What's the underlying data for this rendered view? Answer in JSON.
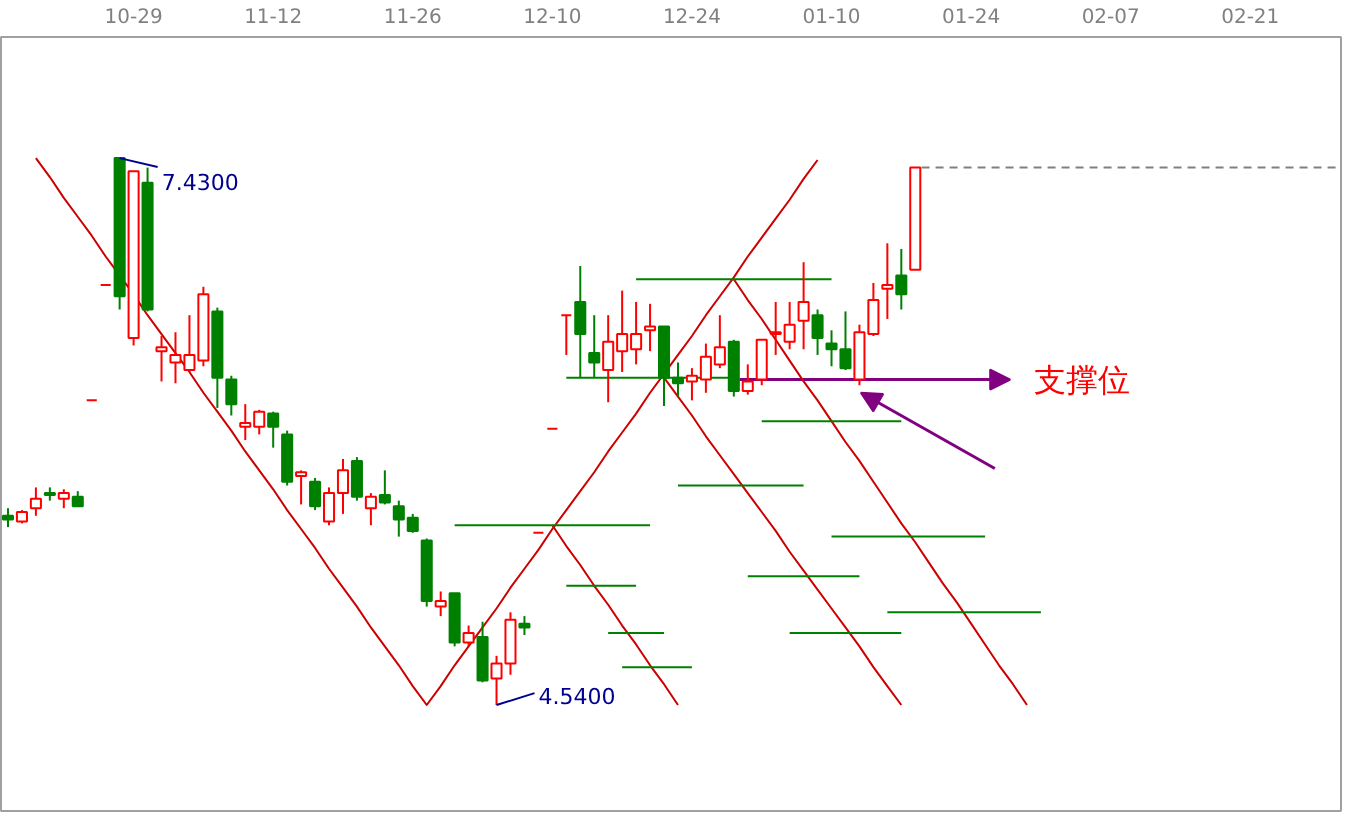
{
  "chart_data": {
    "type": "candlestick",
    "categories": [
      null,
      null,
      null,
      null,
      null,
      null,
      null,
      null,
      null,
      "10-29",
      null,
      null,
      null,
      null,
      null,
      null,
      null,
      null,
      null,
      "11-12",
      null,
      null,
      null,
      null,
      null,
      null,
      null,
      null,
      null,
      "11-26",
      null,
      null,
      null,
      null,
      null,
      null,
      null,
      null,
      null,
      "12-10",
      null,
      null,
      null,
      null,
      null,
      null,
      null,
      null,
      null,
      "12-24",
      null,
      null,
      null,
      null,
      null,
      null,
      null,
      null,
      null,
      "01-10",
      null,
      null,
      null,
      null,
      null,
      null,
      null,
      null,
      null,
      "01-24",
      null,
      null,
      null,
      null,
      null,
      null,
      null,
      null,
      null,
      "02-07",
      null,
      null,
      null,
      null,
      null,
      null,
      null,
      null,
      null,
      "02-21",
      null,
      null,
      null,
      null,
      null,
      null
    ],
    "ohlc": [
      [
        5.54,
        5.58,
        5.48,
        5.52
      ],
      [
        5.51,
        5.57,
        5.5,
        5.56
      ],
      [
        5.58,
        5.69,
        5.54,
        5.63
      ],
      [
        5.66,
        5.69,
        5.62,
        5.65
      ],
      [
        5.63,
        5.68,
        5.58,
        5.66
      ],
      [
        5.64,
        5.67,
        5.59,
        5.59
      ],
      [
        6.15,
        6.15,
        6.15,
        6.15
      ],
      [
        6.76,
        6.76,
        6.76,
        6.76
      ],
      [
        7.43,
        7.43,
        6.63,
        6.7
      ],
      [
        6.48,
        7.36,
        6.44,
        7.36
      ],
      [
        7.3,
        7.38,
        6.62,
        6.63
      ],
      [
        6.41,
        6.49,
        6.25,
        6.43
      ],
      [
        6.35,
        6.51,
        6.24,
        6.39
      ],
      [
        6.31,
        6.6,
        6.3,
        6.39
      ],
      [
        6.36,
        6.75,
        6.33,
        6.71
      ],
      [
        6.62,
        6.64,
        6.11,
        6.27
      ],
      [
        6.26,
        6.28,
        6.07,
        6.13
      ],
      [
        6.01,
        6.13,
        5.94,
        6.03
      ],
      [
        6.01,
        6.1,
        5.97,
        6.09
      ],
      [
        6.08,
        6.09,
        5.9,
        6.01
      ],
      [
        5.97,
        5.99,
        5.7,
        5.72
      ],
      [
        5.75,
        5.78,
        5.6,
        5.77
      ],
      [
        5.72,
        5.74,
        5.57,
        5.59
      ],
      [
        5.51,
        5.69,
        5.49,
        5.66
      ],
      [
        5.66,
        5.84,
        5.55,
        5.78
      ],
      [
        5.83,
        5.85,
        5.62,
        5.64
      ],
      [
        5.58,
        5.66,
        5.49,
        5.64
      ],
      [
        5.65,
        5.78,
        5.6,
        5.61
      ],
      [
        5.59,
        5.62,
        5.43,
        5.52
      ],
      [
        5.53,
        5.55,
        5.45,
        5.46
      ],
      [
        5.41,
        5.42,
        5.06,
        5.09
      ],
      [
        5.06,
        5.14,
        5.01,
        5.09
      ],
      [
        5.13,
        5.13,
        4.85,
        4.87
      ],
      [
        4.87,
        4.96,
        4.85,
        4.92
      ],
      [
        4.9,
        4.98,
        4.66,
        4.67
      ],
      [
        4.68,
        4.8,
        4.54,
        4.76
      ],
      [
        4.76,
        5.03,
        4.7,
        4.99
      ],
      [
        4.97,
        5.01,
        4.91,
        4.95
      ],
      [
        5.45,
        5.45,
        5.45,
        5.45
      ],
      [
        6.0,
        6.0,
        6.0,
        6.0
      ],
      [
        6.6,
        6.6,
        6.39,
        6.6
      ],
      [
        6.67,
        6.86,
        6.27,
        6.5
      ],
      [
        6.4,
        6.6,
        6.27,
        6.35
      ],
      [
        6.31,
        6.6,
        6.14,
        6.46
      ],
      [
        6.41,
        6.73,
        6.3,
        6.5
      ],
      [
        6.42,
        6.67,
        6.34,
        6.5
      ],
      [
        6.52,
        6.66,
        6.41,
        6.54
      ],
      [
        6.54,
        6.54,
        6.12,
        6.27
      ],
      [
        6.27,
        6.35,
        6.17,
        6.24
      ],
      [
        6.25,
        6.32,
        6.15,
        6.28
      ],
      [
        6.26,
        6.45,
        6.19,
        6.38
      ],
      [
        6.34,
        6.6,
        6.32,
        6.43
      ],
      [
        6.46,
        6.47,
        6.17,
        6.2
      ],
      [
        6.2,
        6.34,
        6.18,
        6.25
      ],
      [
        6.26,
        6.47,
        6.23,
        6.47
      ],
      [
        6.5,
        6.67,
        6.39,
        6.51
      ],
      [
        6.46,
        6.67,
        6.42,
        6.55
      ],
      [
        6.57,
        6.88,
        6.42,
        6.67
      ],
      [
        6.6,
        6.63,
        6.39,
        6.48
      ],
      [
        6.45,
        6.52,
        6.33,
        6.42
      ],
      [
        6.42,
        6.62,
        6.31,
        6.32
      ],
      [
        6.26,
        6.55,
        6.23,
        6.51
      ],
      [
        6.5,
        6.77,
        6.49,
        6.68
      ],
      [
        6.74,
        6.98,
        6.58,
        6.76
      ],
      [
        6.81,
        6.95,
        6.63,
        6.71
      ],
      [
        6.84,
        7.38,
        6.84,
        7.38
      ],
      null,
      null,
      null,
      null,
      null,
      null,
      null,
      null,
      null,
      null,
      null,
      null,
      null,
      null,
      null,
      null,
      null,
      null,
      null,
      null,
      null,
      null,
      null,
      null,
      null,
      null,
      null,
      null,
      null,
      null
    ],
    "value_labels": [
      null,
      null,
      null,
      null,
      null,
      null,
      null,
      null,
      "7.4300",
      null,
      null,
      null,
      null,
      null,
      null,
      null,
      null,
      null,
      null,
      null,
      null,
      null,
      null,
      null,
      null,
      null,
      null,
      null,
      null,
      null,
      null,
      null,
      null,
      null,
      null,
      "4.5400",
      null,
      null,
      null,
      null,
      null,
      null,
      null,
      null,
      null,
      null,
      null,
      null,
      null,
      null,
      null,
      null,
      null,
      null,
      null,
      null,
      null,
      null,
      null,
      null,
      null,
      null,
      null,
      null,
      null,
      null,
      null,
      null,
      null,
      null,
      null,
      null,
      null,
      null,
      null,
      null,
      null,
      null,
      null,
      null,
      null,
      null,
      null,
      null,
      null,
      null,
      null,
      null,
      null,
      null,
      null,
      null,
      null,
      null,
      null,
      null
    ],
    "colors": [
      "#008000",
      "#ff0000",
      "#ff0000",
      "#008000",
      "#ff0000",
      "#008000",
      "#ff0000",
      "#ff0000",
      "#008000",
      "#ff0000",
      "#008000",
      "#ff0000",
      "#ff0000",
      "#ff0000",
      "#ff0000",
      "#008000",
      "#008000",
      "#ff0000",
      "#ff0000",
      "#008000",
      "#008000",
      "#ff0000",
      "#008000",
      "#ff0000",
      "#ff0000",
      "#008000",
      "#ff0000",
      "#008000",
      "#008000",
      "#008000",
      "#008000",
      "#ff0000",
      "#008000",
      "#ff0000",
      "#008000",
      "#ff0000",
      "#ff0000",
      "#008000",
      "#ff0000",
      "#ff0000",
      "#ff0000",
      "#008000",
      "#008000",
      "#ff0000",
      "#ff0000",
      "#ff0000",
      "#ff0000",
      "#008000",
      "#008000",
      "#ff0000",
      "#ff0000",
      "#ff0000",
      "#008000",
      "#ff0000",
      "#ff0000",
      "#ff0000",
      "#ff0000",
      "#ff0000",
      "#008000",
      "#008000",
      "#008000",
      "#ff0000",
      "#ff0000",
      "#ff0000",
      "#008000",
      "#ff0000",
      null,
      null,
      null,
      null,
      null,
      null,
      null,
      null,
      null,
      null,
      null,
      null,
      null,
      null,
      null,
      null,
      null,
      null,
      null,
      null,
      null,
      null,
      null,
      null,
      null,
      null,
      null,
      null,
      null,
      null
    ],
    "series": [
      {
        "type": "line",
        "color": "#cc0000",
        "values": [
          null,
          null,
          7.43,
          7.33,
          7.22,
          7.12,
          7.02,
          6.91,
          6.81,
          6.71,
          6.6,
          6.5,
          6.4,
          6.3,
          6.19,
          6.09,
          5.99,
          5.88,
          5.78,
          5.68,
          5.57,
          5.47,
          5.37,
          5.26,
          5.16,
          5.06,
          4.95,
          4.85,
          4.75,
          4.64,
          4.54,
          4.64,
          4.75,
          4.85,
          4.95,
          5.05,
          5.16,
          5.26,
          5.36,
          5.47,
          5.57,
          5.67,
          5.77,
          5.88,
          5.98,
          6.08,
          6.19,
          6.29,
          6.39,
          6.49,
          6.6,
          6.7,
          6.8,
          6.91,
          7.01,
          7.11,
          7.21,
          7.32,
          7.42,
          null,
          null,
          null,
          null,
          null,
          null,
          null,
          null,
          null,
          null,
          null,
          null,
          null,
          null,
          null,
          null,
          null,
          null,
          null,
          null,
          null,
          null,
          null,
          null,
          null,
          null,
          null,
          null,
          null,
          null,
          null,
          null,
          null,
          null,
          null,
          null,
          null
        ]
      },
      {
        "type": "line",
        "color": "#cc0000",
        "values": [
          null,
          null,
          null,
          null,
          null,
          null,
          null,
          null,
          null,
          null,
          null,
          null,
          null,
          null,
          null,
          null,
          null,
          null,
          null,
          null,
          null,
          null,
          null,
          null,
          null,
          null,
          null,
          null,
          null,
          null,
          null,
          null,
          null,
          null,
          null,
          null,
          null,
          null,
          null,
          5.49,
          5.38,
          5.28,
          5.17,
          5.07,
          4.96,
          4.86,
          4.75,
          4.65,
          4.54,
          null,
          null,
          null,
          null,
          null,
          null,
          null,
          null,
          null,
          null,
          null,
          null,
          null,
          null,
          null,
          null,
          null,
          null,
          null,
          null,
          null,
          null,
          null,
          null,
          null,
          null,
          null,
          null,
          null,
          null,
          null,
          null,
          null,
          null,
          null,
          null,
          null,
          null,
          null,
          null,
          null,
          null,
          null,
          null,
          null,
          null,
          null
        ]
      },
      {
        "type": "line",
        "color": "#cc0000",
        "values": [
          null,
          null,
          null,
          null,
          null,
          null,
          null,
          null,
          null,
          null,
          null,
          null,
          null,
          null,
          null,
          null,
          null,
          null,
          null,
          null,
          null,
          null,
          null,
          null,
          null,
          null,
          null,
          null,
          null,
          null,
          null,
          null,
          null,
          null,
          null,
          null,
          null,
          null,
          null,
          null,
          null,
          null,
          null,
          null,
          null,
          null,
          null,
          6.27,
          6.17,
          6.07,
          5.96,
          5.86,
          5.76,
          5.66,
          5.56,
          5.46,
          5.35,
          5.25,
          5.15,
          5.05,
          4.95,
          4.85,
          4.74,
          4.64,
          4.54,
          null,
          null,
          null,
          null,
          null,
          null,
          null,
          null,
          null,
          null,
          null,
          null,
          null,
          null,
          null,
          null,
          null,
          null,
          null,
          null,
          null,
          null,
          null,
          null,
          null,
          null,
          null,
          null,
          null,
          null,
          null
        ]
      },
      {
        "type": "line",
        "color": "#cc0000",
        "values": [
          null,
          null,
          null,
          null,
          null,
          null,
          null,
          null,
          null,
          null,
          null,
          null,
          null,
          null,
          null,
          null,
          null,
          null,
          null,
          null,
          null,
          null,
          null,
          null,
          null,
          null,
          null,
          null,
          null,
          null,
          null,
          null,
          null,
          null,
          null,
          null,
          null,
          null,
          null,
          null,
          null,
          null,
          null,
          null,
          null,
          null,
          null,
          null,
          null,
          null,
          null,
          null,
          6.79,
          6.68,
          6.58,
          6.47,
          6.36,
          6.25,
          6.15,
          6.04,
          5.93,
          5.83,
          5.72,
          5.61,
          5.5,
          5.4,
          5.29,
          5.18,
          5.08,
          4.97,
          4.86,
          4.75,
          4.65,
          4.54,
          null,
          null,
          null,
          null,
          null,
          null,
          null,
          null,
          null,
          null,
          null,
          null,
          null,
          null,
          null,
          null,
          null,
          null,
          null,
          null,
          null,
          null
        ]
      },
      {
        "type": "line",
        "color": "#008000",
        "values": [
          null,
          null,
          null,
          null,
          null,
          null,
          null,
          null,
          null,
          null,
          null,
          null,
          null,
          null,
          null,
          null,
          null,
          null,
          null,
          null,
          null,
          null,
          null,
          null,
          null,
          null,
          null,
          null,
          null,
          null,
          null,
          null,
          5.49,
          5.49,
          5.49,
          5.49,
          5.49,
          5.49,
          5.49,
          5.49,
          5.49,
          5.49,
          5.49,
          5.49,
          5.49,
          5.49,
          5.49,
          null,
          null,
          null,
          null,
          null,
          null,
          null,
          null,
          null,
          null,
          null,
          null,
          null,
          null,
          null,
          null,
          null,
          null,
          null,
          null,
          null,
          null,
          null,
          null,
          null,
          null,
          null,
          null,
          null,
          null,
          null,
          null,
          null,
          null,
          null,
          null,
          null,
          null,
          null,
          null,
          null,
          null,
          null,
          null,
          null,
          null,
          null,
          null,
          null
        ]
      },
      {
        "type": "line",
        "color": "#008000",
        "values": [
          null,
          null,
          null,
          null,
          null,
          null,
          null,
          null,
          null,
          null,
          null,
          null,
          null,
          null,
          null,
          null,
          null,
          null,
          null,
          null,
          null,
          null,
          null,
          null,
          null,
          null,
          null,
          null,
          null,
          null,
          null,
          null,
          null,
          null,
          null,
          null,
          null,
          null,
          null,
          null,
          5.17,
          5.17,
          5.17,
          5.17,
          5.17,
          5.17,
          null,
          null,
          null,
          null,
          null,
          null,
          null,
          null,
          null,
          null,
          null,
          null,
          null,
          null,
          null,
          null,
          null,
          null,
          null,
          null,
          null,
          null,
          null,
          null,
          null,
          null,
          null,
          null,
          null,
          null,
          null,
          null,
          null,
          null,
          null,
          null,
          null,
          null,
          null,
          null,
          null,
          null,
          null,
          null,
          null,
          null,
          null,
          null,
          null,
          null
        ]
      },
      {
        "type": "line",
        "color": "#008000",
        "values": [
          null,
          null,
          null,
          null,
          null,
          null,
          null,
          null,
          null,
          null,
          null,
          null,
          null,
          null,
          null,
          null,
          null,
          null,
          null,
          null,
          null,
          null,
          null,
          null,
          null,
          null,
          null,
          null,
          null,
          null,
          null,
          null,
          null,
          null,
          null,
          null,
          null,
          null,
          null,
          null,
          null,
          null,
          null,
          4.92,
          4.92,
          4.92,
          4.92,
          4.92,
          null,
          null,
          null,
          null,
          null,
          null,
          null,
          null,
          null,
          null,
          null,
          null,
          null,
          null,
          null,
          null,
          null,
          null,
          null,
          null,
          null,
          null,
          null,
          null,
          null,
          null,
          null,
          null,
          null,
          null,
          null,
          null,
          null,
          null,
          null,
          null,
          null,
          null,
          null,
          null,
          null,
          null,
          null,
          null,
          null,
          null,
          null,
          null
        ]
      },
      {
        "type": "line",
        "color": "#008000",
        "values": [
          null,
          null,
          null,
          null,
          null,
          null,
          null,
          null,
          null,
          null,
          null,
          null,
          null,
          null,
          null,
          null,
          null,
          null,
          null,
          null,
          null,
          null,
          null,
          null,
          null,
          null,
          null,
          null,
          null,
          null,
          null,
          null,
          null,
          null,
          null,
          null,
          null,
          null,
          null,
          null,
          null,
          null,
          null,
          null,
          4.74,
          4.74,
          4.74,
          4.74,
          4.74,
          4.74,
          null,
          null,
          null,
          null,
          null,
          null,
          null,
          null,
          null,
          null,
          null,
          null,
          null,
          null,
          null,
          null,
          null,
          null,
          null,
          null,
          null,
          null,
          null,
          null,
          null,
          null,
          null,
          null,
          null,
          null,
          null,
          null,
          null,
          null,
          null,
          null,
          null,
          null,
          null,
          null,
          null,
          null,
          null,
          null,
          null,
          null
        ]
      },
      {
        "type": "line",
        "color": "#008000",
        "values": [
          null,
          null,
          null,
          null,
          null,
          null,
          null,
          null,
          null,
          null,
          null,
          null,
          null,
          null,
          null,
          null,
          null,
          null,
          null,
          null,
          null,
          null,
          null,
          null,
          null,
          null,
          null,
          null,
          null,
          null,
          null,
          null,
          null,
          null,
          null,
          null,
          null,
          null,
          null,
          null,
          6.27,
          6.27,
          6.27,
          6.27,
          6.27,
          6.27,
          6.27,
          6.27,
          6.27,
          6.27,
          6.27,
          6.27,
          6.27,
          null,
          null,
          null,
          null,
          null,
          null,
          null,
          null,
          null,
          null,
          null,
          null,
          null,
          null,
          null,
          null,
          null,
          null,
          null,
          null,
          null,
          null,
          null,
          null,
          null,
          null,
          null,
          null,
          null,
          null,
          null,
          null,
          null,
          null,
          null,
          null,
          null,
          null,
          null,
          null,
          null,
          null,
          null
        ]
      },
      {
        "type": "line",
        "color": "#008000",
        "values": [
          null,
          null,
          null,
          null,
          null,
          null,
          null,
          null,
          null,
          null,
          null,
          null,
          null,
          null,
          null,
          null,
          null,
          null,
          null,
          null,
          null,
          null,
          null,
          null,
          null,
          null,
          null,
          null,
          null,
          null,
          null,
          null,
          null,
          null,
          null,
          null,
          null,
          null,
          null,
          null,
          null,
          null,
          null,
          null,
          null,
          6.79,
          6.79,
          6.79,
          6.79,
          6.79,
          6.79,
          6.79,
          6.79,
          6.79,
          6.79,
          6.79,
          6.79,
          6.79,
          6.79,
          6.79,
          null,
          null,
          null,
          null,
          null,
          null,
          null,
          null,
          null,
          null,
          null,
          null,
          null,
          null,
          null,
          null,
          null,
          null,
          null,
          null,
          null,
          null,
          null,
          null,
          null,
          null,
          null,
          null,
          null,
          null,
          null,
          null,
          null,
          null,
          null,
          null
        ]
      },
      {
        "type": "line",
        "color": "#008000",
        "values": [
          null,
          null,
          null,
          null,
          null,
          null,
          null,
          null,
          null,
          null,
          null,
          null,
          null,
          null,
          null,
          null,
          null,
          null,
          null,
          null,
          null,
          null,
          null,
          null,
          null,
          null,
          null,
          null,
          null,
          null,
          null,
          null,
          null,
          null,
          null,
          null,
          null,
          null,
          null,
          null,
          null,
          null,
          null,
          null,
          null,
          null,
          null,
          null,
          null,
          null,
          null,
          null,
          null,
          null,
          6.04,
          6.04,
          6.04,
          6.04,
          6.04,
          6.04,
          6.04,
          6.04,
          6.04,
          6.04,
          6.04,
          null,
          null,
          null,
          null,
          null,
          null,
          null,
          null,
          null,
          null,
          null,
          null,
          null,
          null,
          null,
          null,
          null,
          null,
          null,
          null,
          null,
          null,
          null,
          null,
          null,
          null,
          null,
          null,
          null,
          null,
          null
        ]
      },
      {
        "type": "line",
        "color": "#008000",
        "values": [
          null,
          null,
          null,
          null,
          null,
          null,
          null,
          null,
          null,
          null,
          null,
          null,
          null,
          null,
          null,
          null,
          null,
          null,
          null,
          null,
          null,
          null,
          null,
          null,
          null,
          null,
          null,
          null,
          null,
          null,
          null,
          null,
          null,
          null,
          null,
          null,
          null,
          null,
          null,
          null,
          null,
          null,
          null,
          null,
          null,
          null,
          null,
          null,
          5.7,
          5.7,
          5.7,
          5.7,
          5.7,
          5.7,
          5.7,
          5.7,
          5.7,
          5.7,
          null,
          null,
          null,
          null,
          null,
          null,
          null,
          null,
          null,
          null,
          null,
          null,
          null,
          null,
          null,
          null,
          null,
          null,
          null,
          null,
          null,
          null,
          null,
          null,
          null,
          null,
          null,
          null,
          null,
          null,
          null,
          null,
          null,
          null,
          null,
          null,
          null,
          null
        ]
      },
      {
        "type": "line",
        "color": "#008000",
        "values": [
          null,
          null,
          null,
          null,
          null,
          null,
          null,
          null,
          null,
          null,
          null,
          null,
          null,
          null,
          null,
          null,
          null,
          null,
          null,
          null,
          null,
          null,
          null,
          null,
          null,
          null,
          null,
          null,
          null,
          null,
          null,
          null,
          null,
          null,
          null,
          null,
          null,
          null,
          null,
          null,
          null,
          null,
          null,
          null,
          null,
          null,
          null,
          null,
          null,
          null,
          null,
          null,
          null,
          null,
          null,
          null,
          null,
          null,
          null,
          5.43,
          5.43,
          5.43,
          5.43,
          5.43,
          5.43,
          5.43,
          5.43,
          5.43,
          5.43,
          5.43,
          5.43,
          null,
          null,
          null,
          null,
          null,
          null,
          null,
          null,
          null,
          null,
          null,
          null,
          null,
          null,
          null,
          null,
          null,
          null,
          null,
          null,
          null,
          null,
          null,
          null,
          null
        ]
      },
      {
        "type": "line",
        "color": "#008000",
        "values": [
          null,
          null,
          null,
          null,
          null,
          null,
          null,
          null,
          null,
          null,
          null,
          null,
          null,
          null,
          null,
          null,
          null,
          null,
          null,
          null,
          null,
          null,
          null,
          null,
          null,
          null,
          null,
          null,
          null,
          null,
          null,
          null,
          null,
          null,
          null,
          null,
          null,
          null,
          null,
          null,
          null,
          null,
          null,
          null,
          null,
          null,
          null,
          null,
          null,
          null,
          null,
          null,
          null,
          5.22,
          5.22,
          5.22,
          5.22,
          5.22,
          5.22,
          5.22,
          5.22,
          5.22,
          null,
          null,
          null,
          null,
          null,
          null,
          null,
          null,
          null,
          null,
          null,
          null,
          null,
          null,
          null,
          null,
          null,
          null,
          null,
          null,
          null,
          null,
          null,
          null,
          null,
          null,
          null,
          null,
          null,
          null,
          null,
          null,
          null,
          null
        ]
      },
      {
        "type": "line",
        "color": "#008000",
        "values": [
          null,
          null,
          null,
          null,
          null,
          null,
          null,
          null,
          null,
          null,
          null,
          null,
          null,
          null,
          null,
          null,
          null,
          null,
          null,
          null,
          null,
          null,
          null,
          null,
          null,
          null,
          null,
          null,
          null,
          null,
          null,
          null,
          null,
          null,
          null,
          null,
          null,
          null,
          null,
          null,
          null,
          null,
          null,
          null,
          null,
          null,
          null,
          null,
          null,
          null,
          null,
          null,
          null,
          null,
          null,
          null,
          null,
          null,
          null,
          null,
          null,
          null,
          null,
          5.03,
          5.03,
          5.03,
          5.03,
          5.03,
          5.03,
          5.03,
          5.03,
          5.03,
          5.03,
          5.03,
          5.03,
          null,
          null,
          null,
          null,
          null,
          null,
          null,
          null,
          null,
          null,
          null,
          null,
          null,
          null,
          null,
          null,
          null,
          null,
          null,
          null,
          null
        ]
      },
      {
        "type": "line",
        "color": "#008000",
        "values": [
          null,
          null,
          null,
          null,
          null,
          null,
          null,
          null,
          null,
          null,
          null,
          null,
          null,
          null,
          null,
          null,
          null,
          null,
          null,
          null,
          null,
          null,
          null,
          null,
          null,
          null,
          null,
          null,
          null,
          null,
          null,
          null,
          null,
          null,
          null,
          null,
          null,
          null,
          null,
          null,
          null,
          null,
          null,
          null,
          null,
          null,
          null,
          null,
          null,
          null,
          null,
          null,
          null,
          null,
          null,
          null,
          4.92,
          4.92,
          4.92,
          4.92,
          4.92,
          4.92,
          4.92,
          4.92,
          4.92,
          null,
          null,
          null,
          null,
          null,
          null,
          null,
          null,
          null,
          null,
          null,
          null,
          null,
          null,
          null,
          null,
          null,
          null,
          null,
          null,
          null,
          null,
          null,
          null,
          null,
          null,
          null,
          null,
          null,
          null,
          null
        ]
      }
    ],
    "annotations": [
      "支撑位"
    ],
    "ref_lines": [
      {
        "axis": "y",
        "value": 7.38,
        "color": "#808080",
        "line_style": "dashed"
      }
    ],
    "ylim": [
      3.98,
      8.07
    ],
    "tick_labels": "x",
    "grid": false
  }
}
